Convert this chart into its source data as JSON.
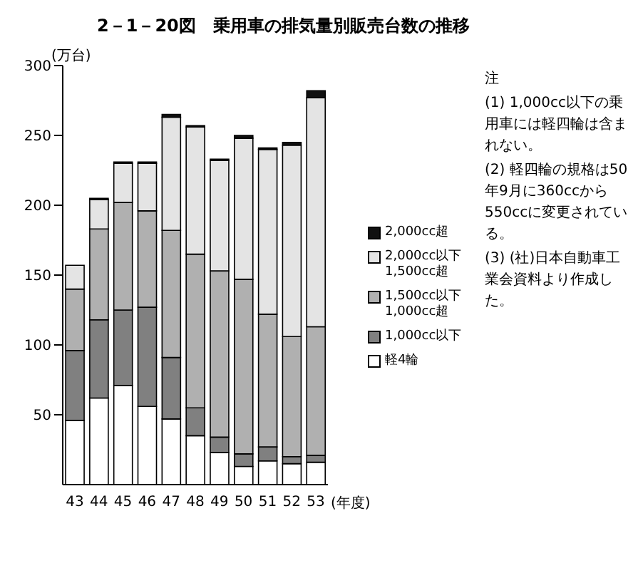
{
  "chart_data": {
    "type": "bar",
    "title": "2－1－20図　乗用車の排気量別販売台数の推移",
    "ylabel": "(万台)",
    "xlabel": "(年度)",
    "categories": [
      "43",
      "44",
      "45",
      "46",
      "47",
      "48",
      "49",
      "50",
      "51",
      "52",
      "53"
    ],
    "stacked": true,
    "series": [
      {
        "name": "軽4輪",
        "color": "#ffffff",
        "values": [
          46,
          62,
          71,
          56,
          47,
          35,
          23,
          13,
          17,
          15,
          16
        ]
      },
      {
        "name": "1,000cc以下",
        "color": "#808080",
        "values": [
          50,
          56,
          54,
          71,
          44,
          20,
          11,
          9,
          10,
          5,
          5
        ]
      },
      {
        "name": "1,500cc以下 1,000cc超",
        "color": "#b0b0b0",
        "values": [
          44,
          65,
          77,
          69,
          91,
          110,
          119,
          125,
          95,
          86,
          92
        ]
      },
      {
        "name": "2,000cc以下 1,500cc超",
        "color": "#e4e4e4",
        "values": [
          17,
          21,
          28,
          34,
          81,
          91,
          79,
          101,
          118,
          137,
          164
        ]
      },
      {
        "name": "2,000cc超",
        "color": "#111111",
        "values": [
          0,
          1,
          1,
          1,
          2,
          1,
          1,
          2,
          1,
          2,
          5
        ]
      }
    ],
    "ylim": [
      0,
      300
    ],
    "yticks": [
      50,
      100,
      150,
      200,
      250,
      300
    ],
    "grid": false,
    "legend": "right",
    "annotations": [
      "注",
      "(1) 1,000cc以下の乗用車には軽四輪は含まれない。",
      "(2) 軽四輪の規格は50年9月に360ccから550ccに変更されている。",
      "(3) (社)日本自動車工業会資料より作成した。"
    ]
  }
}
